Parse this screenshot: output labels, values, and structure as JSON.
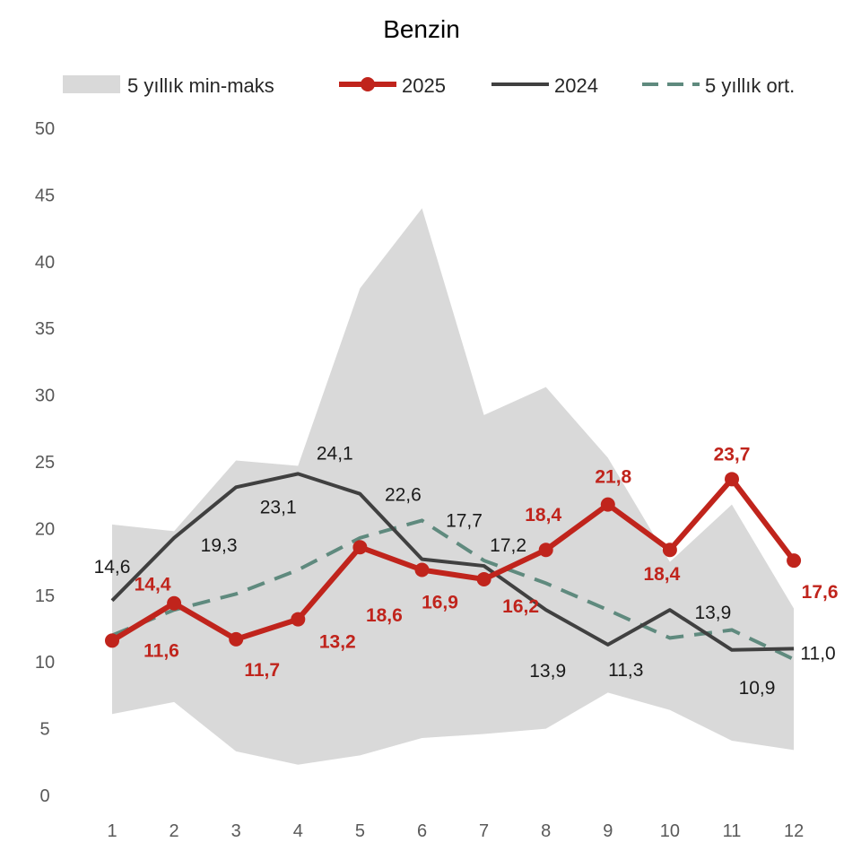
{
  "chart_data": {
    "type": "line",
    "title": "Benzin",
    "xlabel": "",
    "ylabel": "",
    "x": [
      1,
      2,
      3,
      4,
      5,
      6,
      7,
      8,
      9,
      10,
      11,
      12
    ],
    "ylim": [
      0,
      50
    ],
    "yticks": [
      0,
      5,
      10,
      15,
      20,
      25,
      30,
      35,
      40,
      45,
      50
    ],
    "grid": false,
    "legend_position": "top",
    "band": {
      "name": "5 yıllık min-maks",
      "color": "#d9d9d9",
      "min": [
        6.1,
        7.0,
        3.3,
        2.3,
        3.0,
        4.3,
        4.6,
        5.0,
        7.7,
        6.4,
        4.1,
        3.4
      ],
      "max": [
        20.3,
        19.8,
        25.1,
        24.7,
        38.0,
        44.0,
        28.5,
        30.6,
        25.3,
        17.5,
        21.8,
        14.0
      ]
    },
    "series": [
      {
        "name": "2025",
        "color": "#c0241c",
        "values": [
          11.6,
          14.4,
          11.7,
          13.2,
          18.6,
          16.9,
          16.2,
          18.4,
          21.8,
          18.4,
          23.7,
          17.6
        ],
        "labels": [
          "11,6",
          "14,4",
          "11,7",
          "13,2",
          "18,6",
          "16,9",
          "16,2",
          "18,4",
          "21,8",
          "18,4",
          "23,7",
          "17,6"
        ]
      },
      {
        "name": "2024",
        "color": "#404040",
        "values": [
          14.6,
          19.3,
          23.1,
          24.1,
          22.6,
          17.7,
          17.2,
          13.9,
          11.3,
          13.9,
          10.9,
          11.0
        ],
        "labels": [
          "14,6",
          "19,3",
          "23,1",
          "24,1",
          "22,6",
          "17,7",
          "17,2",
          "13,9",
          "11,3",
          "13,9",
          "10,9",
          "11,0"
        ]
      },
      {
        "name": "5 yıllık ort.",
        "color": "#5f8a7e",
        "dashed": true,
        "values": [
          12.0,
          13.9,
          15.1,
          16.9,
          19.3,
          20.6,
          17.6,
          15.9,
          13.9,
          11.8,
          12.4,
          10.2
        ]
      }
    ]
  }
}
